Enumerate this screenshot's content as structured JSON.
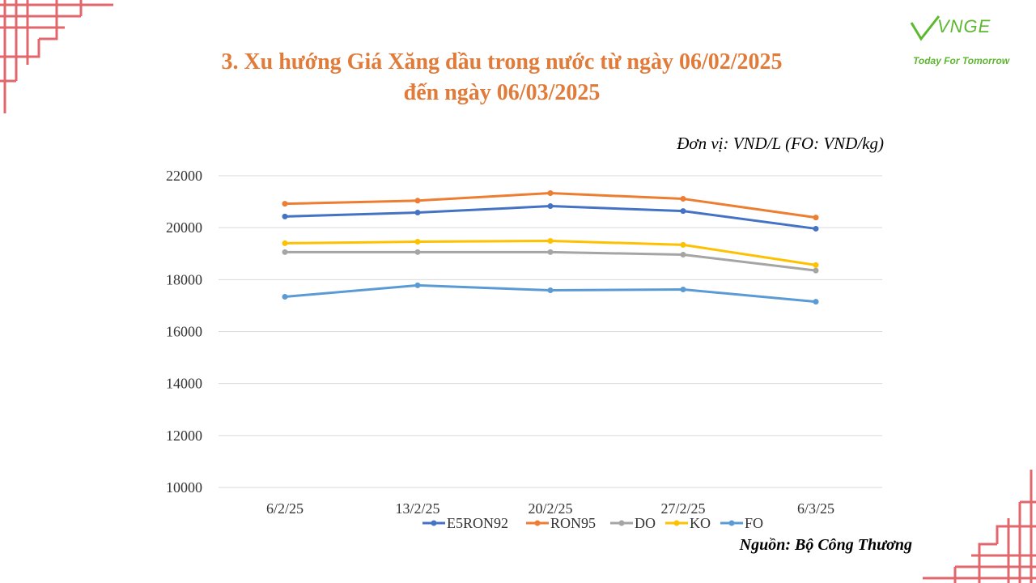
{
  "header": {
    "title_line1": "3. Xu hướng Giá Xăng dầu trong nước từ ngày 06/02/2025",
    "title_line2": "đến ngày 06/03/2025",
    "unit_note": "Đơn vị: VND/L (FO: VND/kg)",
    "source_note": "Nguồn: Bộ Công Thương"
  },
  "logo": {
    "word": "VNGE",
    "tagline": "Today For Tomorrow",
    "color": "#5cb82e"
  },
  "decor": {
    "corner_color": "#e2676d"
  },
  "chart_data": {
    "type": "line",
    "categories": [
      "6/2/25",
      "13/2/25",
      "20/2/25",
      "27/2/25",
      "6/3/25"
    ],
    "ylim": [
      10000,
      22000
    ],
    "yticks": [
      "22000",
      "20000",
      "18000",
      "16000",
      "14000",
      "12000",
      "10000"
    ],
    "grid": true,
    "legend_position": "bottom",
    "series": [
      {
        "name": "E5RON92",
        "color": "#4472c4",
        "values": [
          20430,
          20580,
          20830,
          20640,
          19960
        ]
      },
      {
        "name": "RON95",
        "color": "#ed7d31",
        "values": [
          20920,
          21040,
          21330,
          21110,
          20390
        ]
      },
      {
        "name": "DO",
        "color": "#a5a5a5",
        "values": [
          19060,
          19060,
          19060,
          18960,
          18350
        ]
      },
      {
        "name": "KO",
        "color": "#ffc000",
        "values": [
          19400,
          19460,
          19490,
          19340,
          18560
        ]
      },
      {
        "name": "FO",
        "color": "#5b9bd5",
        "values": [
          17340,
          17780,
          17590,
          17620,
          17150
        ]
      }
    ]
  }
}
